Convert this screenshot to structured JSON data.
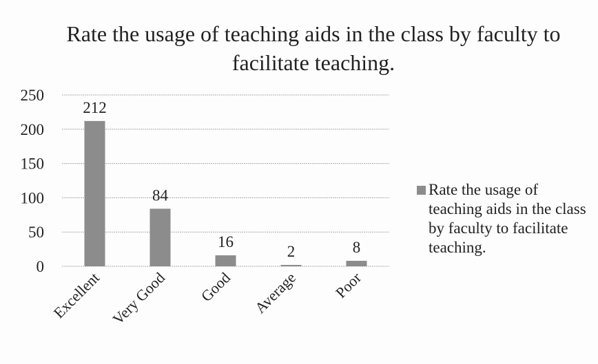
{
  "chart_data": {
    "type": "bar",
    "title": "Rate the usage of teaching aids in the class by faculty to facilitate teaching.",
    "categories": [
      "Excellent",
      "Very Good",
      "Good",
      "Average",
      "Poor"
    ],
    "series": [
      {
        "name": "Rate the usage of teaching aids in the class by faculty to facilitate teaching.",
        "color": "#8c8c8c",
        "values": [
          212,
          84,
          16,
          2,
          8
        ]
      }
    ],
    "ylim": [
      0,
      250
    ],
    "yticks": [
      0,
      50,
      100,
      150,
      200,
      250
    ],
    "grid": true,
    "legend": "right"
  }
}
